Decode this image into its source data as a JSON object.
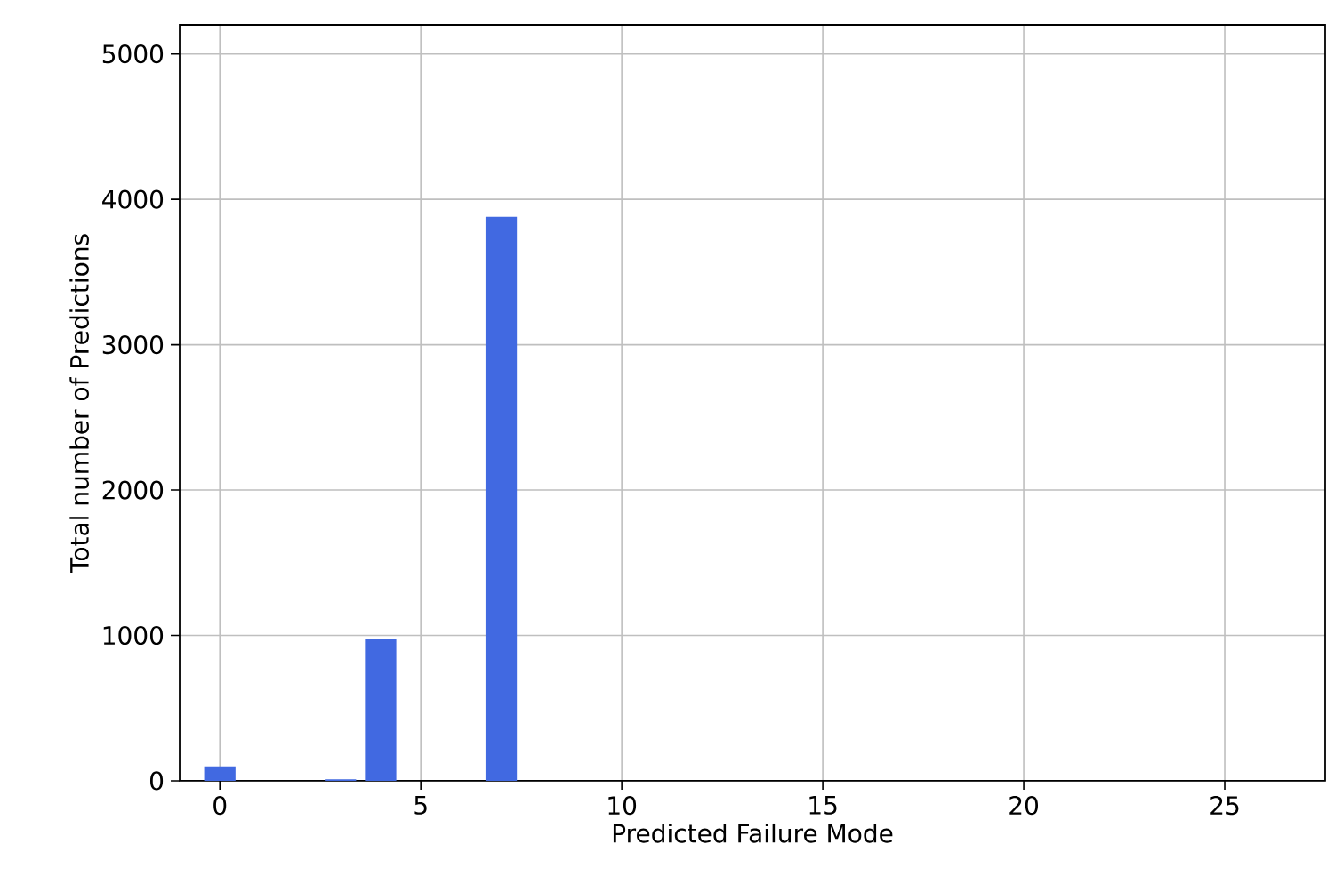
{
  "chart_data": {
    "type": "bar",
    "xlabel": "Predicted Failure Mode",
    "ylabel": "Total number of Predictions",
    "x": [
      0,
      1,
      2,
      3,
      4,
      5,
      6,
      7,
      8,
      9,
      10,
      11,
      12,
      13,
      14,
      15,
      16,
      17,
      18,
      19,
      20,
      21,
      22,
      23,
      24,
      25,
      26,
      27
    ],
    "values": [
      100,
      0,
      0,
      10,
      975,
      0,
      0,
      3880,
      0,
      0,
      0,
      0,
      0,
      0,
      0,
      0,
      0,
      0,
      0,
      0,
      0,
      0,
      0,
      0,
      0,
      0,
      0,
      0
    ],
    "color": "#4169e1",
    "xlim": [
      -1,
      27.5
    ],
    "ylim": [
      0,
      5200
    ],
    "xticks": [
      0,
      5,
      10,
      15,
      20,
      25
    ],
    "yticks": [
      0,
      1000,
      2000,
      3000,
      4000,
      5000
    ],
    "grid": true
  }
}
